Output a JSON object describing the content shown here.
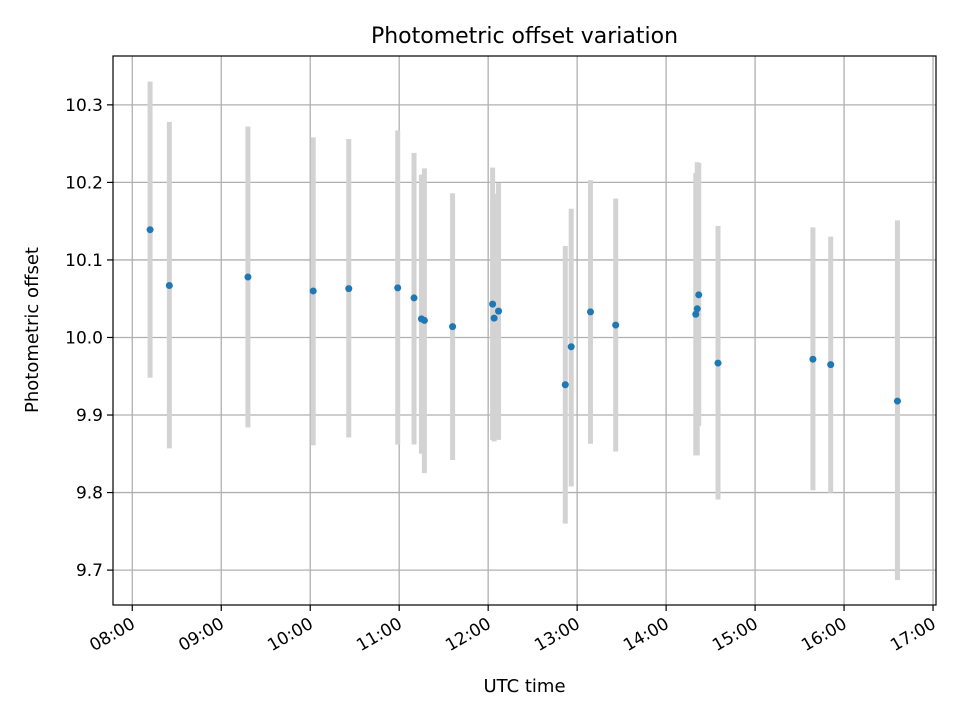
{
  "chart_data": {
    "type": "scatter",
    "title": "Photometric offset variation",
    "xlabel": "UTC time",
    "ylabel": "Photometric offset",
    "x_tick_labels": [
      "08:00",
      "09:00",
      "10:00",
      "11:00",
      "12:00",
      "13:00",
      "14:00",
      "15:00",
      "16:00",
      "17:00"
    ],
    "y_ticks": [
      9.7,
      9.8,
      9.9,
      10.0,
      10.1,
      10.2,
      10.3
    ],
    "y_tick_labels": [
      "9.7",
      "9.8",
      "9.9",
      "10.0",
      "10.1",
      "10.2",
      "10.3"
    ],
    "xlim": [
      "07:47",
      "17:02"
    ],
    "ylim": [
      9.655,
      10.363
    ],
    "grid": true,
    "colors": {
      "point": "#1f77b4",
      "errorbar": "#d3d3d3",
      "grid": "#b0b0b0"
    },
    "points": [
      {
        "x": "08:12",
        "y": 10.139,
        "low": 9.948,
        "high": 10.33
      },
      {
        "x": "08:25",
        "y": 10.067,
        "low": 9.857,
        "high": 10.278
      },
      {
        "x": "09:18",
        "y": 10.078,
        "low": 9.884,
        "high": 10.272
      },
      {
        "x": "10:02",
        "y": 10.06,
        "low": 9.861,
        "high": 10.258
      },
      {
        "x": "10:26",
        "y": 10.063,
        "low": 9.871,
        "high": 10.256
      },
      {
        "x": "10:59",
        "y": 10.064,
        "low": 9.862,
        "high": 10.267
      },
      {
        "x": "11:10",
        "y": 10.051,
        "low": 9.862,
        "high": 10.238
      },
      {
        "x": "11:15",
        "y": 10.024,
        "low": 9.85,
        "high": 10.21
      },
      {
        "x": "11:17",
        "y": 10.022,
        "low": 9.825,
        "high": 10.218
      },
      {
        "x": "11:36",
        "y": 10.014,
        "low": 9.842,
        "high": 10.186
      },
      {
        "x": "12:03",
        "y": 10.043,
        "low": 9.868,
        "high": 10.219
      },
      {
        "x": "12:04",
        "y": 10.025,
        "low": 9.866,
        "high": 10.185
      },
      {
        "x": "12:07",
        "y": 10.034,
        "low": 9.868,
        "high": 10.199
      },
      {
        "x": "12:52",
        "y": 9.939,
        "low": 9.76,
        "high": 10.118
      },
      {
        "x": "12:56",
        "y": 9.988,
        "low": 9.808,
        "high": 10.166
      },
      {
        "x": "13:09",
        "y": 10.033,
        "low": 9.863,
        "high": 10.203
      },
      {
        "x": "13:26",
        "y": 10.016,
        "low": 9.853,
        "high": 10.179
      },
      {
        "x": "14:20",
        "y": 10.03,
        "low": 9.848,
        "high": 10.212
      },
      {
        "x": "14:21",
        "y": 10.037,
        "low": 9.848,
        "high": 10.226
      },
      {
        "x": "14:22",
        "y": 10.055,
        "low": 9.886,
        "high": 10.225
      },
      {
        "x": "14:35",
        "y": 9.967,
        "low": 9.791,
        "high": 10.144
      },
      {
        "x": "15:39",
        "y": 9.972,
        "low": 9.803,
        "high": 10.142
      },
      {
        "x": "15:51",
        "y": 9.965,
        "low": 9.8,
        "high": 10.13
      },
      {
        "x": "16:36",
        "y": 9.918,
        "low": 9.687,
        "high": 10.151
      }
    ]
  }
}
